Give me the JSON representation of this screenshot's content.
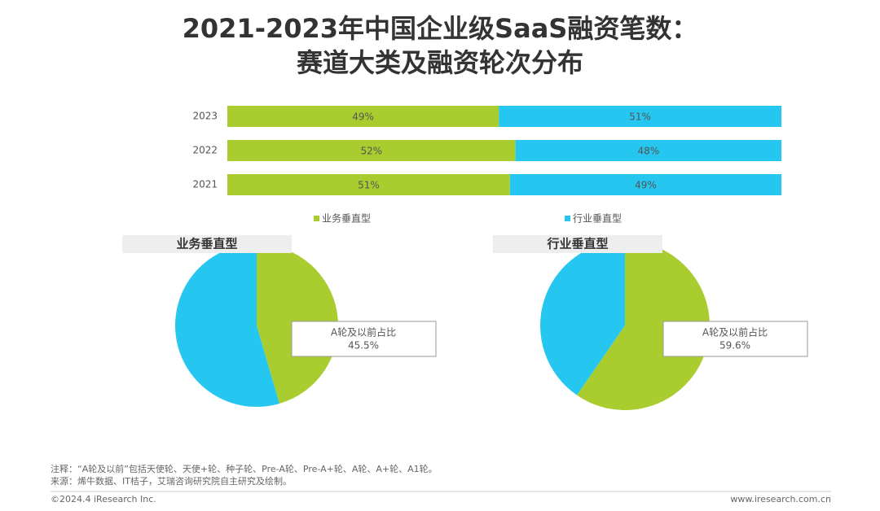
{
  "header": {
    "title": [
      "2021-2023年中国企业级SaaS融资笔数：",
      "赛道大类及融资轮次分布"
    ]
  },
  "chart_data": [
    {
      "type": "stacked-bar",
      "categories": [
        "2023",
        "2022",
        "2021"
      ],
      "xlim": [
        0,
        100
      ],
      "series": [
        {
          "name": "业务垂直型",
          "color": "#a9cc2e",
          "values": [
            49,
            52,
            51
          ],
          "value_labels": [
            "49%",
            "52%",
            "51%"
          ]
        },
        {
          "name": "行业垂直型",
          "color": "#25c6ef",
          "values": [
            51,
            48,
            49
          ],
          "value_labels": [
            "51%",
            "48%",
            "49%"
          ]
        }
      ]
    },
    {
      "type": "pie",
      "title": "业务垂直型",
      "categories": [
        "A轮及以前占比",
        null
      ],
      "values": [
        45.5,
        54.5
      ],
      "value_labels": [
        "45.5%",
        null
      ],
      "colors": [
        "#a9cc2e",
        "#25c6ef"
      ]
    },
    {
      "type": "pie",
      "title": "行业垂直型",
      "categories": [
        "A轮及以前占比",
        null
      ],
      "values": [
        59.6,
        40.4
      ],
      "value_labels": [
        "59.6%",
        null
      ],
      "colors": [
        "#a9cc2e",
        "#25c6ef"
      ]
    }
  ],
  "notes": [
    "注释：“A轮及以前”包括天使轮、天使+轮、种子轮、Pre-A轮、Pre-A+轮、A轮、A+轮、A1轮。",
    "来源：烯牛数据、IT桔子，艾瑞咨询研究院自主研究及绘制。"
  ],
  "footer": {
    "copyright": "©2024.4 iResearch Inc.",
    "url": "www.iresearch.com.cn"
  }
}
